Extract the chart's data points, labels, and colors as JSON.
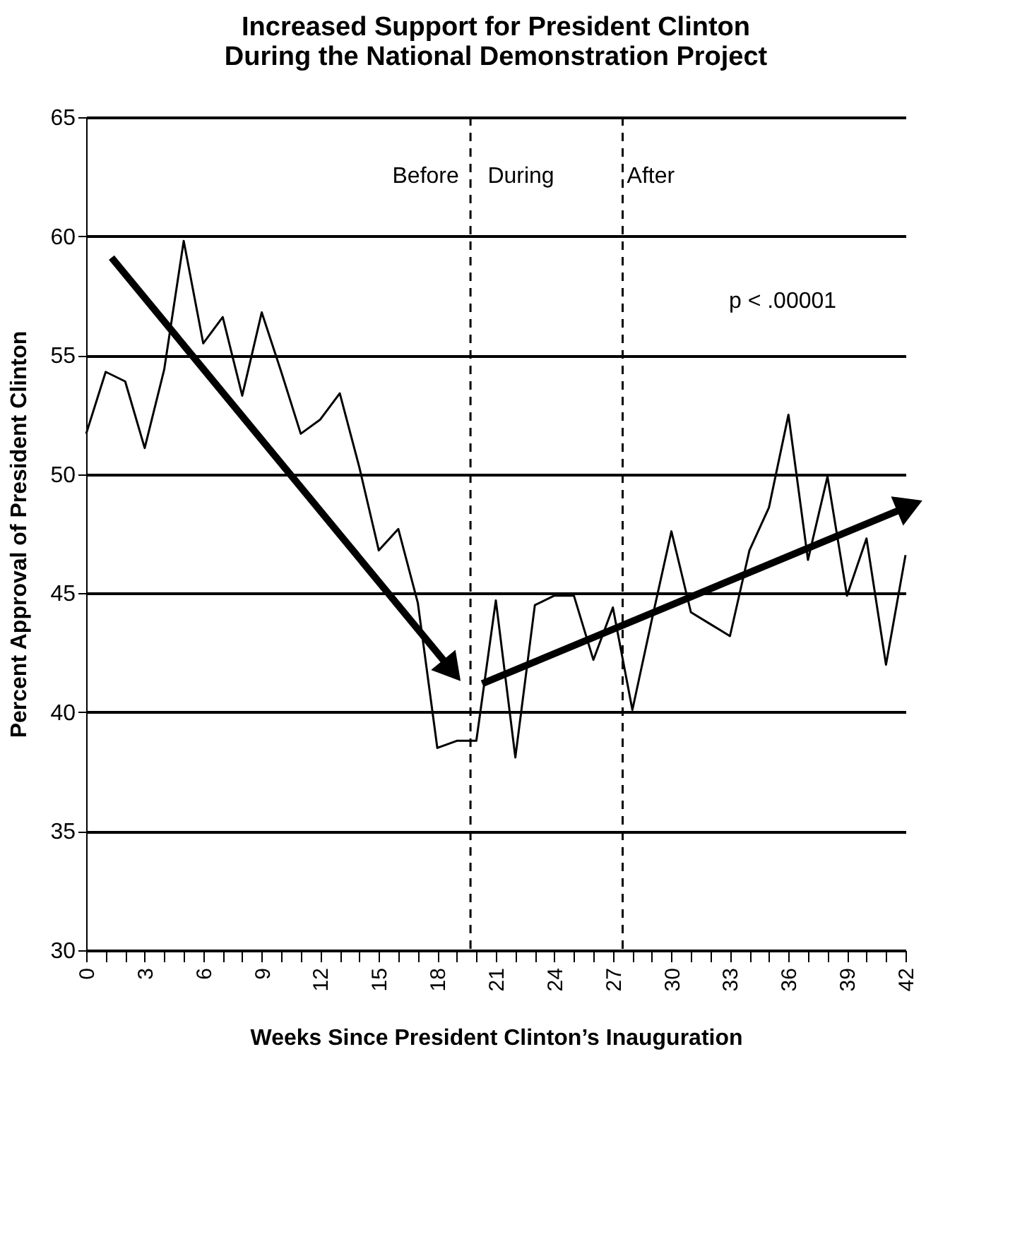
{
  "chart_data": {
    "type": "line",
    "title": [
      "Increased Support for President Clinton",
      "During the National Demonstration Project"
    ],
    "xlabel": "Weeks Since President Clinton’s Inauguration",
    "ylabel": "Percent Approval of President Clinton",
    "x": [
      0,
      1,
      2,
      3,
      4,
      5,
      6,
      7,
      8,
      9,
      10,
      11,
      12,
      13,
      14,
      15,
      16,
      17,
      18,
      19,
      20,
      21,
      22,
      23,
      24,
      25,
      26,
      27,
      28,
      29,
      30,
      31,
      32,
      33,
      34,
      35,
      36,
      37,
      38,
      39,
      40,
      41,
      42
    ],
    "series": [
      {
        "color": "#000000",
        "values": [
          51.7,
          54.3,
          53.9,
          51.1,
          54.4,
          59.8,
          55.5,
          56.6,
          53.3,
          56.8,
          54.3,
          51.7,
          52.3,
          53.4,
          50.3,
          46.8,
          47.7,
          44.6,
          38.5,
          38.8,
          38.8,
          44.7,
          38.1,
          44.5,
          44.9,
          44.9,
          42.2,
          44.4,
          40.1,
          43.9,
          47.6,
          44.2,
          43.7,
          43.2,
          46.8,
          48.6,
          52.5,
          46.4,
          49.9,
          44.9,
          47.3,
          42.0,
          46.6
        ]
      },
      {
        "type": "line",
        "color": "#000000",
        "x": [
          1.3,
          18.6
        ],
        "values": [
          59.1,
          41.9
        ]
      },
      {
        "type": "line",
        "color": "#000000",
        "x": [
          20.3,
          42
        ],
        "values": [
          41.2,
          48.6
        ]
      }
    ],
    "xlim": [
      0,
      42
    ],
    "xticks": [
      0,
      {
        "value": 1,
        "label": null
      },
      {
        "value": 2,
        "label": null
      },
      3,
      {
        "value": 4,
        "label": null
      },
      {
        "value": 5,
        "label": null
      },
      6,
      {
        "value": 7,
        "label": null
      },
      {
        "value": 8,
        "label": null
      },
      9,
      {
        "value": 10,
        "label": null
      },
      {
        "value": 11,
        "label": null
      },
      12,
      {
        "value": 13,
        "label": null
      },
      {
        "value": 14,
        "label": null
      },
      15,
      {
        "value": 16,
        "label": null
      },
      {
        "value": 17,
        "label": null
      },
      18,
      {
        "value": 19,
        "label": null
      },
      {
        "value": 20,
        "label": null
      },
      21,
      {
        "value": 22,
        "label": null
      },
      {
        "value": 23,
        "label": null
      },
      24,
      {
        "value": 25,
        "label": null
      },
      {
        "value": 26,
        "label": null
      },
      27,
      {
        "value": 28,
        "label": null
      },
      {
        "value": 29,
        "label": null
      },
      30,
      {
        "value": 31,
        "label": null
      },
      {
        "value": 32,
        "label": null
      },
      33,
      {
        "value": 34,
        "label": null
      },
      {
        "value": 35,
        "label": null
      },
      36,
      {
        "value": 37,
        "label": null
      },
      {
        "value": 38,
        "label": null
      },
      39,
      {
        "value": 40,
        "label": null
      },
      {
        "value": 41,
        "label": null
      },
      42
    ],
    "ylim": [
      30,
      65
    ],
    "yticks": [
      30,
      35,
      40,
      45,
      50,
      55,
      60,
      65
    ],
    "grid": "y",
    "ref_lines": [
      {
        "axis": "x",
        "value": 19.7,
        "line_style": "dashed",
        "color": "#000000"
      },
      {
        "axis": "x",
        "value": 27.5,
        "line_style": "dashed",
        "color": "#000000"
      }
    ],
    "annotations": [
      "Before",
      "During",
      "After",
      "p < .00001"
    ]
  }
}
